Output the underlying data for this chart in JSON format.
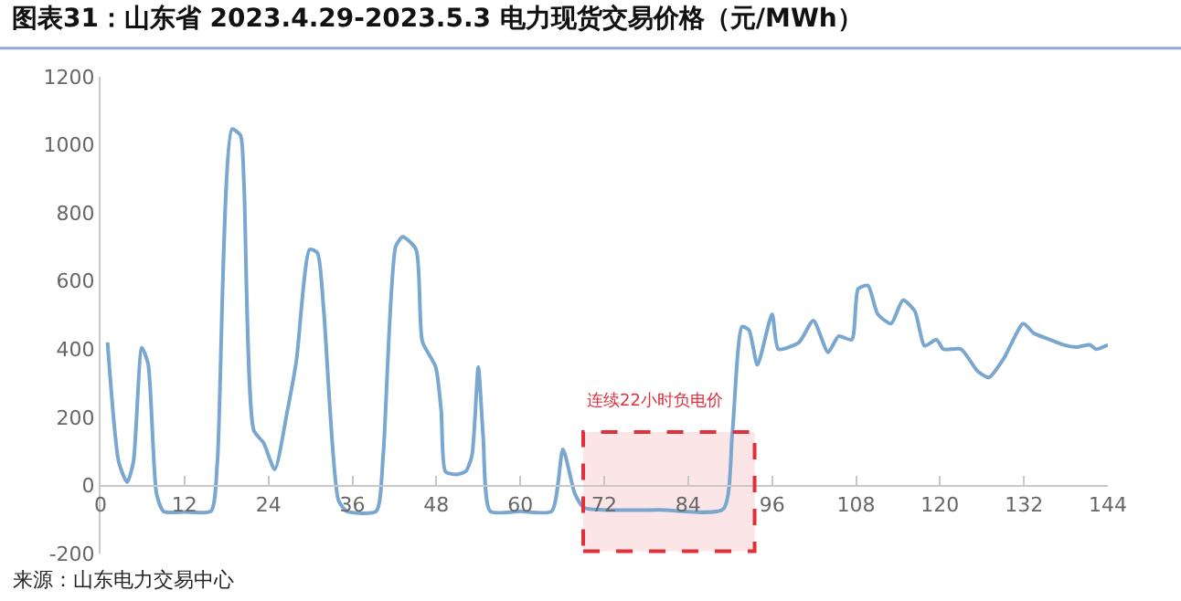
{
  "chart_data": {
    "type": "line",
    "title": "图表31：山东省 2023.4.29-2023.5.3 电力现货交易价格（元/MWh）",
    "annotations": [
      "来源：山东电力交易中心"
    ],
    "series": [
      {
        "color": "#79a7cf",
        "x": [
          1,
          2.6,
          3.8,
          4.7,
          5.9,
          6.8,
          8,
          9,
          12,
          15.8,
          16.7,
          18.8,
          20,
          20.5,
          21.9,
          23.3,
          24.9,
          26.7,
          28,
          29.9,
          31,
          31.9,
          34,
          35.2,
          39.4,
          40.4,
          42.2,
          43.2,
          45.1,
          46,
          47.9,
          48.7,
          49.3,
          50.8,
          52.2,
          53.1,
          54,
          54.7,
          55.7,
          60,
          64.5,
          66.1,
          67.8,
          69.1,
          80,
          89,
          90.3,
          91.7,
          92.7,
          93.9,
          96,
          96.9,
          99.8,
          101.9,
          104,
          105.5,
          107.4,
          108.3,
          109.7,
          111.1,
          113,
          114.7,
          116.4,
          117.8,
          119.5,
          120.5,
          123,
          125.4,
          127,
          129.1,
          131.9,
          133.4,
          135.7,
          137.6,
          139.5,
          141.4,
          142.3,
          144
        ],
        "values": [
          420,
          69,
          9,
          69,
          404,
          357,
          -24,
          -76,
          -78,
          -75,
          69,
          1046,
          1028,
          888,
          162,
          125,
          47,
          218,
          367,
          693,
          683,
          516,
          -43,
          -76,
          -76,
          88,
          702,
          730,
          693,
          423,
          348,
          218,
          41,
          32,
          41,
          88,
          348,
          143,
          -76,
          -76,
          -76,
          106,
          -24,
          -65,
          -72,
          -70,
          149,
          466,
          456,
          354,
          503,
          400,
          419,
          484,
          391,
          438,
          428,
          577,
          587,
          503,
          475,
          544,
          512,
          410,
          428,
          400,
          400,
          335,
          317,
          372,
          475,
          447,
          428,
          413,
          406,
          413,
          400,
          413
        ]
      }
    ],
    "xlim": [
      0,
      144
    ],
    "xticks": [
      0,
      12,
      24,
      36,
      48,
      60,
      72,
      84,
      96,
      108,
      120,
      132,
      144
    ],
    "ylim": [
      -200,
      1200
    ],
    "yticks": [
      -200,
      0,
      200,
      400,
      600,
      800,
      1000,
      1200
    ],
    "bands": [
      {
        "axis": "x",
        "from": 69,
        "to": 93.5,
        "label": "连续22小时负电价",
        "color": "#e0303c"
      }
    ],
    "grid": false,
    "marker": "none",
    "line_style": "solid"
  }
}
